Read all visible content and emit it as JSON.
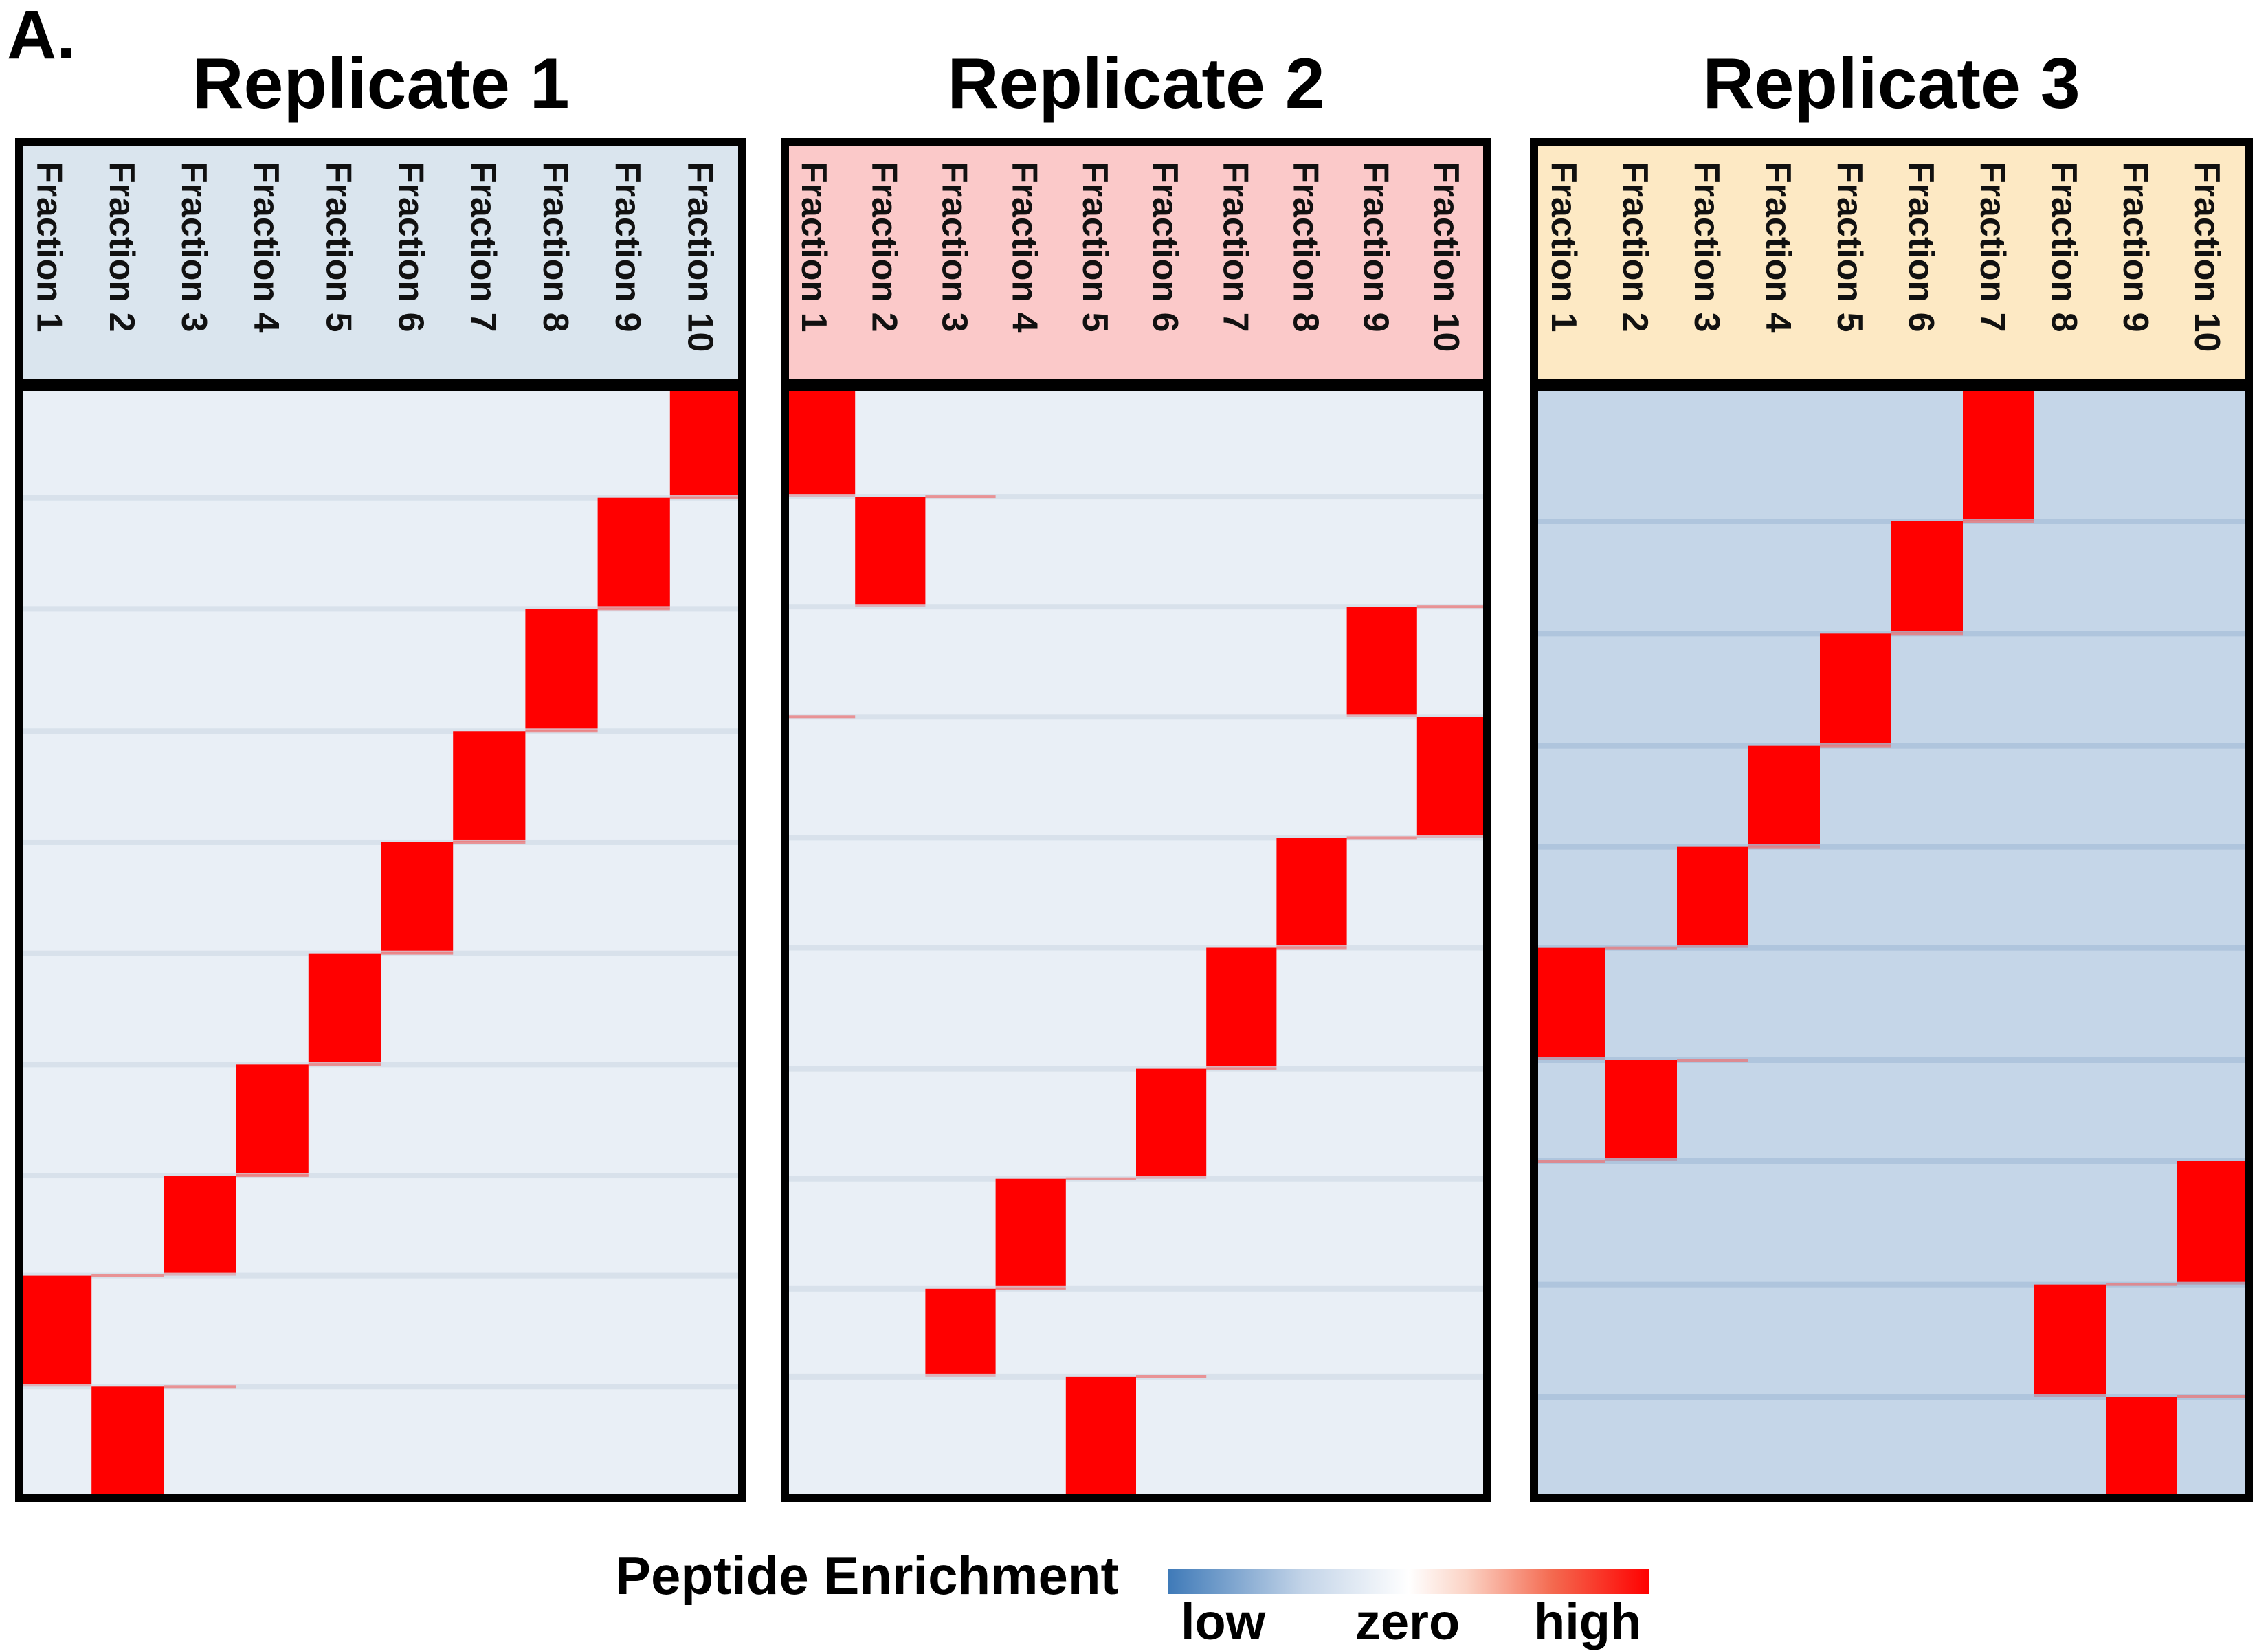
{
  "panel_label": "A.",
  "colors": {
    "low": "#3f7ab8",
    "zero": "#ffffff",
    "high": "#ff0000",
    "background_cell": "#e9eff6",
    "replicate_3_background_cell": "#c5d6e8",
    "header_replicate_1": "#dae5ee",
    "header_replicate_2": "#fbc9c9",
    "header_replicate_3": "#fde9c4",
    "frame": "#000000"
  },
  "legend": {
    "title": "Peptide Enrichment",
    "tick_low": "low",
    "tick_zero": "zero",
    "tick_high": "high"
  },
  "chart_data": [
    {
      "type": "heatmap",
      "title": "Replicate 1",
      "columns": [
        "Fraction 1",
        "Fraction 2",
        "Fraction 3",
        "Fraction 4",
        "Fraction 5",
        "Fraction 6",
        "Fraction 7",
        "Fraction 8",
        "Fraction 9",
        "Fraction 10"
      ],
      "row_blocks_top_to_bottom": [
        {
          "high_fraction": "Fraction 10",
          "relative_rows": 10
        },
        {
          "high_fraction": "Fraction 9",
          "relative_rows": 10
        },
        {
          "high_fraction": "Fraction 8",
          "relative_rows": 11
        },
        {
          "high_fraction": "Fraction 7",
          "relative_rows": 10
        },
        {
          "high_fraction": "Fraction 6",
          "relative_rows": 10
        },
        {
          "high_fraction": "Fraction 5",
          "relative_rows": 10
        },
        {
          "high_fraction": "Fraction 4",
          "relative_rows": 10
        },
        {
          "high_fraction": "Fraction 3",
          "relative_rows": 9
        },
        {
          "high_fraction": "Fraction 1",
          "relative_rows": 10
        },
        {
          "high_fraction": "Fraction 2",
          "relative_rows": 10
        }
      ],
      "other_cells": "zero to slightly low"
    },
    {
      "type": "heatmap",
      "title": "Replicate 2",
      "columns": [
        "Fraction 1",
        "Fraction 2",
        "Fraction 3",
        "Fraction 4",
        "Fraction 5",
        "Fraction 6",
        "Fraction 7",
        "Fraction 8",
        "Fraction 9",
        "Fraction 10"
      ],
      "row_blocks_top_to_bottom": [
        {
          "high_fraction": "Fraction 1",
          "relative_rows": 10
        },
        {
          "high_fraction": "Fraction 2",
          "relative_rows": 10
        },
        {
          "high_fraction": "Fraction 9",
          "relative_rows": 10
        },
        {
          "high_fraction": "Fraction 10",
          "relative_rows": 11
        },
        {
          "high_fraction": "Fraction 8",
          "relative_rows": 10
        },
        {
          "high_fraction": "Fraction 7",
          "relative_rows": 11
        },
        {
          "high_fraction": "Fraction 6",
          "relative_rows": 10
        },
        {
          "high_fraction": "Fraction 4",
          "relative_rows": 10
        },
        {
          "high_fraction": "Fraction 3",
          "relative_rows": 8
        },
        {
          "high_fraction": "Fraction 5",
          "relative_rows": 11
        }
      ],
      "other_cells": "zero to slightly low"
    },
    {
      "type": "heatmap",
      "title": "Replicate 3",
      "columns": [
        "Fraction 1",
        "Fraction 2",
        "Fraction 3",
        "Fraction 4",
        "Fraction 5",
        "Fraction 6",
        "Fraction 7",
        "Fraction 8",
        "Fraction 9",
        "Fraction 10"
      ],
      "row_blocks_top_to_bottom": [
        {
          "high_fraction": "Fraction 7",
          "relative_rows": 12
        },
        {
          "high_fraction": "Fraction 6",
          "relative_rows": 10
        },
        {
          "high_fraction": "Fraction 5",
          "relative_rows": 10
        },
        {
          "high_fraction": "Fraction 4",
          "relative_rows": 9
        },
        {
          "high_fraction": "Fraction 3",
          "relative_rows": 9
        },
        {
          "high_fraction": "Fraction 1",
          "relative_rows": 10
        },
        {
          "high_fraction": "Fraction 2",
          "relative_rows": 9
        },
        {
          "high_fraction": "Fraction 10",
          "relative_rows": 11
        },
        {
          "high_fraction": "Fraction 8",
          "relative_rows": 10
        },
        {
          "high_fraction": "Fraction 9",
          "relative_rows": 9
        }
      ],
      "other_cells": "slightly low"
    }
  ]
}
